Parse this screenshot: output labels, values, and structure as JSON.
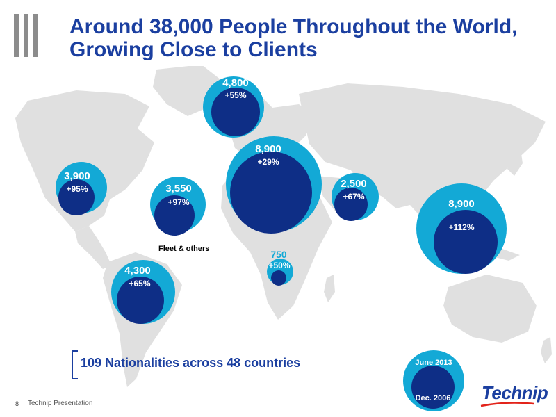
{
  "title": {
    "line1": "Around 38,000 People Throughout the World,",
    "line2": "Growing Close to Clients"
  },
  "regions": [
    {
      "key": "north-america",
      "value": "3,900",
      "change": "+95%"
    },
    {
      "key": "fleet",
      "value": "3,550",
      "change": "+97%",
      "caption": "Fleet & others"
    },
    {
      "key": "northern-europe",
      "value": "4,800",
      "change": "+55%"
    },
    {
      "key": "europe",
      "value": "8,900",
      "change": "+29%"
    },
    {
      "key": "middle-east",
      "value": "2,500",
      "change": "+67%"
    },
    {
      "key": "asia-pacific",
      "value": "8,900",
      "change": "+112%"
    },
    {
      "key": "africa",
      "value": "750",
      "change": "+50%"
    },
    {
      "key": "south-america",
      "value": "4,300",
      "change": "+65%"
    }
  ],
  "nationalities": "109 Nationalities across 48 countries",
  "legend": {
    "outer": "June 2013",
    "inner": "Dec. 2006"
  },
  "footer": {
    "page": "8",
    "text": "Technip Presentation"
  },
  "logo": "Technip",
  "colors": {
    "outer": "#13a9d6",
    "inner": "#0e2e86",
    "title": "#1b3fa0",
    "map": "#e0e0e0",
    "logo_swoosh": "#e2231a"
  }
}
